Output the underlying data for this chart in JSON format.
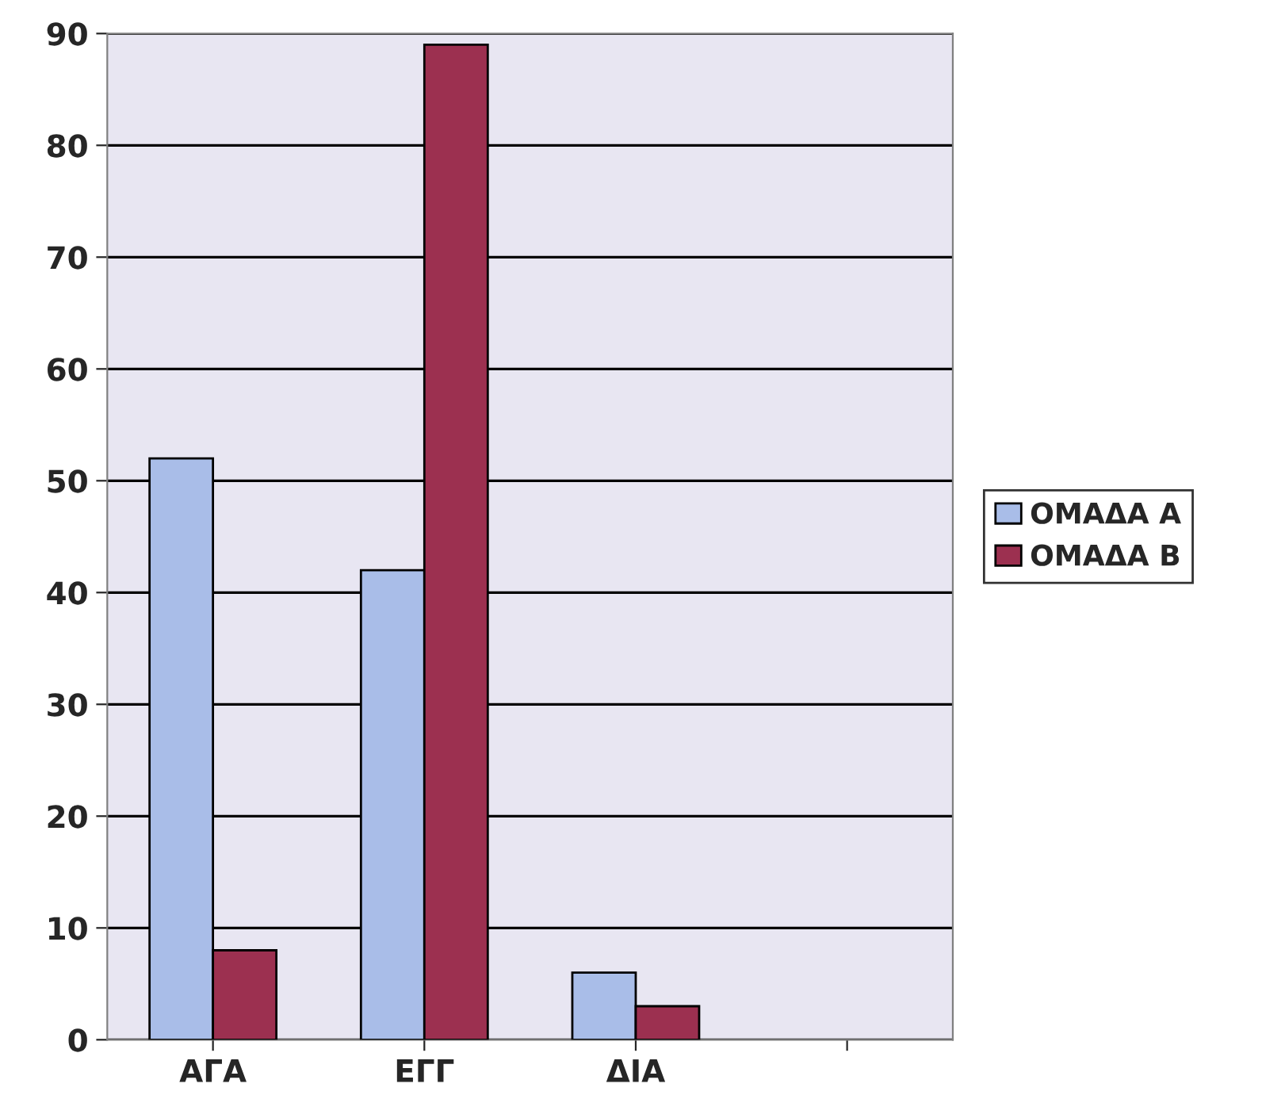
{
  "chart_data": {
    "type": "bar",
    "categories": [
      "ΑΓΑ",
      "ΕΓΓ",
      "ΔΙΑ",
      null
    ],
    "series": [
      {
        "name": "ΟΜΑΔΑ Α",
        "color": "#a9bde8",
        "values": [
          52,
          42,
          6,
          null
        ]
      },
      {
        "name": "ΟΜΑΔΑ Β",
        "color": "#9c3050",
        "values": [
          8,
          89,
          3,
          null
        ]
      }
    ],
    "ylim": [
      0,
      90
    ],
    "yticks": [
      0,
      10,
      20,
      30,
      40,
      50,
      60,
      70,
      80,
      90
    ],
    "grid": "y",
    "legend": "right"
  }
}
